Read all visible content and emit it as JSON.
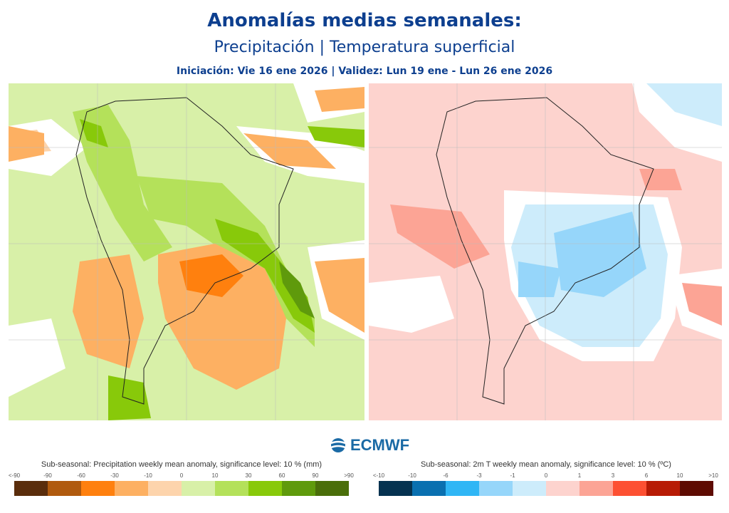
{
  "header": {
    "title": "Anomalías medias semanales:",
    "subtitle": "Precipitación | Temperatura superficial",
    "dates": "Iniciación: Vie 16 ene 2026 | Validez: Lun 19 ene - Lun 26 ene 2026"
  },
  "logo": {
    "text": "ECMWF"
  },
  "precip_legend": {
    "title": "Sub-seasonal: Precipitation weekly mean anomaly, significance level: 10 % (mm)",
    "ticks": [
      "<-90",
      "-90",
      "-60",
      "-30",
      "-10",
      "0",
      "10",
      "30",
      "60",
      "90",
      ">90"
    ],
    "colors": [
      "#5a2d0c",
      "#b05a0e",
      "#ff800e",
      "#fdb062",
      "#fdd4ac",
      "#d8f0a8",
      "#b4e15a",
      "#88c90a",
      "#5f9a0c",
      "#4a6e0a"
    ]
  },
  "temp_legend": {
    "title": "Sub-seasonal: 2m T weekly mean anomaly, significance level: 10 % (ºC)",
    "ticks": [
      "<-10",
      "-10",
      "-6",
      "-3",
      "-1",
      "0",
      "1",
      "3",
      "6",
      "10",
      ">10"
    ],
    "colors": [
      "#053250",
      "#0a70b0",
      "#2fb6f5",
      "#96d6fa",
      "#cdecfb",
      "#fdd3ce",
      "#fca495",
      "#fd5032",
      "#b71b05",
      "#5e0b02"
    ]
  }
}
